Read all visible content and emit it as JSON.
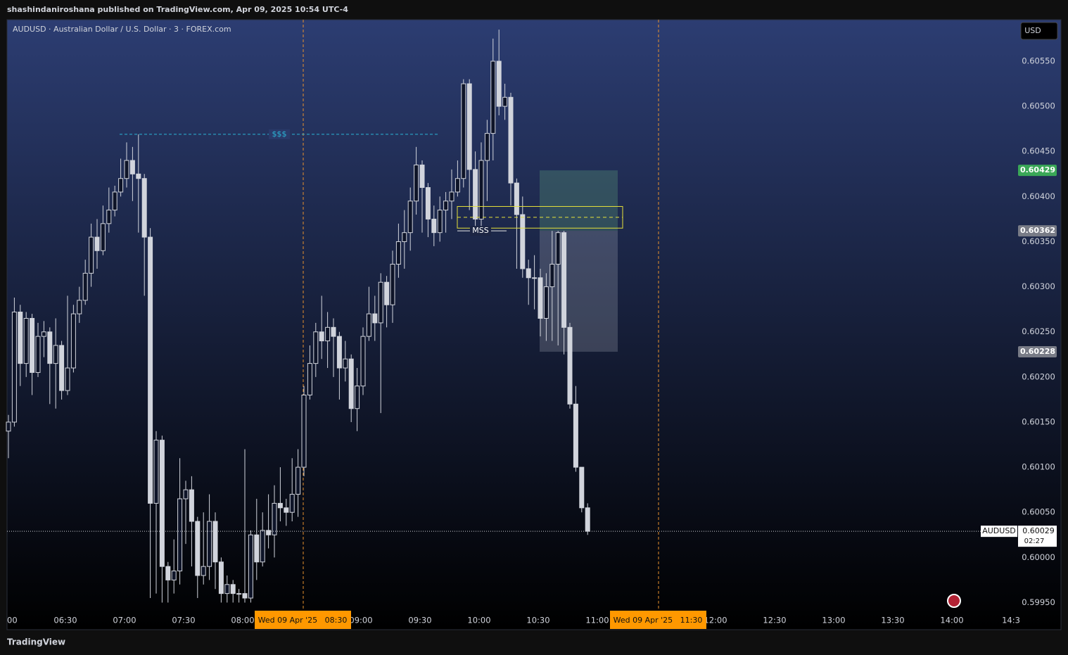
{
  "header": {
    "publisher": "shashindaniroshana published on TradingView.com, Apr 09, 2025 10:54 UTC-4",
    "footer": "TradingView"
  },
  "chart_data": {
    "type": "candlestick",
    "title": "AUDUSD · Australian Dollar / U.S. Dollar · 3 · FOREX.com",
    "currency": "USD",
    "open": [
      0.6014,
      0.6015,
      0.60272,
      0.60215,
      0.60265,
      0.60205,
      0.60245,
      0.6025,
      0.60215,
      0.60235,
      0.60185,
      0.6021,
      0.6027,
      0.60285,
      0.60315,
      0.60355,
      0.6034,
      0.6037,
      0.60385,
      0.60405,
      0.6042,
      0.6044,
      0.60425,
      0.6042,
      0.60355,
      0.6006,
      0.6013,
      0.5999,
      0.59975,
      0.59985,
      0.60065,
      0.60075,
      0.6004,
      0.5998,
      0.5999,
      0.6004,
      0.59995,
      0.5996,
      0.5997,
      0.5996,
      0.5996,
      0.59955,
      0.60025,
      0.59995,
      0.6003,
      0.60025,
      0.6006,
      0.60055,
      0.6005,
      0.6007,
      0.601,
      0.6018,
      0.60215,
      0.6025,
      0.6024,
      0.60255,
      0.60245,
      0.6021,
      0.6022,
      0.60165,
      0.6019,
      0.60245,
      0.6027,
      0.6026,
      0.60305,
      0.6028,
      0.60325,
      0.6035,
      0.6036,
      0.60395,
      0.60435,
      0.6041,
      0.60375,
      0.6036,
      0.60385,
      0.60395,
      0.60405,
      0.6042,
      0.60525,
      0.6043,
      0.60375,
      0.6044,
      0.6047,
      0.6055,
      0.605,
      0.6051,
      0.60415,
      0.6038,
      0.6032,
      0.6031,
      0.6031,
      0.60265,
      0.603,
      0.60325,
      0.6036,
      0.60255,
      0.6017,
      0.601,
      0.60055
    ],
    "high": [
      0.60158,
      0.60288,
      0.6028,
      0.60272,
      0.6027,
      0.6026,
      0.60262,
      0.60255,
      0.60265,
      0.6024,
      0.6029,
      0.6028,
      0.603,
      0.6033,
      0.6037,
      0.60375,
      0.6039,
      0.6041,
      0.60412,
      0.60442,
      0.6046,
      0.60455,
      0.60469,
      0.60425,
      0.60365,
      0.6014,
      0.60135,
      0.59995,
      0.6002,
      0.6011,
      0.60085,
      0.6009,
      0.60045,
      0.6005,
      0.6007,
      0.6005,
      0.6,
      0.5998,
      0.59975,
      0.59965,
      0.6012,
      0.6003,
      0.60065,
      0.6005,
      0.6007,
      0.6008,
      0.601,
      0.60065,
      0.6011,
      0.6012,
      0.6019,
      0.60235,
      0.6026,
      0.6029,
      0.60272,
      0.60265,
      0.6025,
      0.6024,
      0.60225,
      0.6021,
      0.60255,
      0.603,
      0.6029,
      0.60315,
      0.60312,
      0.6034,
      0.6037,
      0.60385,
      0.6041,
      0.60455,
      0.6044,
      0.60415,
      0.6039,
      0.604,
      0.60405,
      0.6043,
      0.6044,
      0.6053,
      0.6053,
      0.6045,
      0.6046,
      0.60485,
      0.60575,
      0.60585,
      0.60525,
      0.60515,
      0.6042,
      0.604,
      0.6033,
      0.60335,
      0.6032,
      0.60315,
      0.60362,
      0.60362,
      0.60362,
      0.6026,
      0.6019,
      0.601,
      0.6006
    ],
    "low": [
      0.6011,
      0.60145,
      0.6019,
      0.602,
      0.6018,
      0.602,
      0.60222,
      0.6017,
      0.60165,
      0.60175,
      0.6018,
      0.60205,
      0.6026,
      0.6028,
      0.603,
      0.6032,
      0.60335,
      0.6036,
      0.60378,
      0.604,
      0.6041,
      0.60395,
      0.6036,
      0.6029,
      0.59955,
      0.5996,
      0.5995,
      0.5995,
      0.5996,
      0.5997,
      0.60015,
      0.5999,
      0.59955,
      0.5997,
      0.59975,
      0.59965,
      0.5995,
      0.5995,
      0.5995,
      0.5995,
      0.5995,
      0.5995,
      0.59975,
      0.5999,
      0.6001,
      0.6,
      0.6004,
      0.60035,
      0.6004,
      0.60045,
      0.6009,
      0.60175,
      0.602,
      0.6022,
      0.6021,
      0.602,
      0.60175,
      0.60195,
      0.6015,
      0.6014,
      0.6018,
      0.6024,
      0.6024,
      0.6016,
      0.60255,
      0.6026,
      0.6031,
      0.6032,
      0.6034,
      0.6038,
      0.6036,
      0.60355,
      0.60345,
      0.6035,
      0.6036,
      0.60375,
      0.604,
      0.6041,
      0.60385,
      0.60365,
      0.60365,
      0.60395,
      0.6044,
      0.6049,
      0.60485,
      0.6039,
      0.6032,
      0.6031,
      0.6028,
      0.60275,
      0.60245,
      0.6024,
      0.6024,
      0.60235,
      0.60225,
      0.60165,
      0.60095,
      0.6005,
      0.60025
    ],
    "close": [
      0.6015,
      0.60272,
      0.60215,
      0.60265,
      0.60205,
      0.60245,
      0.6025,
      0.60215,
      0.60235,
      0.60185,
      0.6021,
      0.6027,
      0.60285,
      0.60315,
      0.60355,
      0.6034,
      0.6037,
      0.60385,
      0.60405,
      0.6042,
      0.6044,
      0.60425,
      0.6042,
      0.60355,
      0.6006,
      0.6013,
      0.5999,
      0.59975,
      0.59985,
      0.60065,
      0.60075,
      0.6004,
      0.5998,
      0.5999,
      0.6004,
      0.59995,
      0.5996,
      0.5997,
      0.5996,
      0.5996,
      0.59955,
      0.60025,
      0.59995,
      0.6003,
      0.60025,
      0.6006,
      0.60055,
      0.6005,
      0.6007,
      0.601,
      0.6018,
      0.60215,
      0.6025,
      0.6024,
      0.60255,
      0.60245,
      0.6021,
      0.6022,
      0.60165,
      0.6019,
      0.60245,
      0.6027,
      0.6026,
      0.60305,
      0.6028,
      0.60325,
      0.6035,
      0.6036,
      0.60395,
      0.60435,
      0.6041,
      0.60375,
      0.6036,
      0.60385,
      0.60395,
      0.60405,
      0.6042,
      0.60525,
      0.6043,
      0.60375,
      0.6044,
      0.6047,
      0.6055,
      0.605,
      0.6051,
      0.60415,
      0.6038,
      0.6032,
      0.6031,
      0.6031,
      0.60265,
      0.603,
      0.60325,
      0.6036,
      0.60255,
      0.6017,
      0.601,
      0.60055,
      0.60029
    ],
    "color": "#d1d4dc",
    "ylim": [
      0.59941,
      0.60596
    ],
    "yticks": [
      {
        "value": 0.5995,
        "label": "0.59950"
      },
      {
        "value": 0.6,
        "label": "0.60000"
      },
      {
        "value": 0.6005,
        "label": "0.60050"
      },
      {
        "value": 0.601,
        "label": "0.60100"
      },
      {
        "value": 0.6015,
        "label": "0.60150"
      },
      {
        "value": 0.602,
        "label": "0.60200"
      },
      {
        "value": 0.6025,
        "label": "0.60250"
      },
      {
        "value": 0.603,
        "label": "0.60300"
      },
      {
        "value": 0.6035,
        "label": "0.60350"
      },
      {
        "value": 0.604,
        "label": "0.60400"
      },
      {
        "value": 0.6045,
        "label": "0.60450"
      },
      {
        "value": 0.605,
        "label": "0.60500"
      },
      {
        "value": 0.6055,
        "label": "0.60550"
      }
    ],
    "xticks": [
      "00",
      "06:30",
      "07:00",
      "07:30",
      "08:00",
      null,
      "09:00",
      "09:30",
      "10:00",
      "10:30",
      "11:00",
      null,
      "12:00",
      "12:30",
      "13:00",
      "13:30",
      "14:00",
      "14:3"
    ],
    "grid": false,
    "time_markers": [
      "Wed 09 Apr '25   08:30",
      "Wed 09 Apr '25   11:30"
    ],
    "liquidity": {
      "label": "$$$",
      "price": 0.60469
    },
    "mss": {
      "label": "MSS",
      "price": 0.60362
    },
    "zone": {
      "top": 0.60389,
      "bottom": 0.60365,
      "mid": 0.60377
    },
    "position": {
      "target": 0.60429,
      "entry": 0.60362,
      "stop": 0.60228
    },
    "last_price": {
      "symbol": "AUDUSD",
      "price": 0.60029,
      "countdown": "02:27"
    }
  }
}
